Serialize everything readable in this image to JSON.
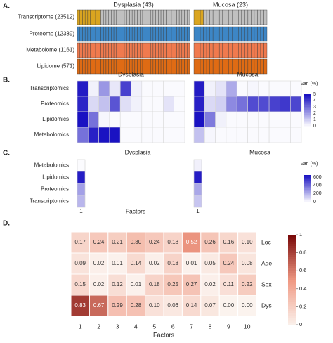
{
  "panel_labels": [
    "A.",
    "B.",
    "C.",
    "D."
  ],
  "chart_data": [
    {
      "panel": "A.",
      "type": "heatmap",
      "groups": [
        {
          "name": "Dysplasia (43)",
          "n": 43
        },
        {
          "name": "Mucosa (23)",
          "n": 23
        }
      ],
      "rows": [
        {
          "name": "Transcriptome (23512)",
          "color": "#c0c0c0",
          "missing_color": "#daa520"
        },
        {
          "name": "Proteome (12389)",
          "color": "#3d86c6"
        },
        {
          "name": "Metabolome (1161)",
          "color": "#f07a4e"
        },
        {
          "name": "Lipidome (571)",
          "color": "#df6b14"
        }
      ],
      "transcriptome_missing_samples": {
        "Dysplasia (43)": 9,
        "Mucosa (23)": 3
      }
    },
    {
      "panel": "B.",
      "type": "heatmap",
      "panels": [
        "Dysplasia",
        "Mucosa"
      ],
      "rows": [
        "Transcriptomics",
        "Proteomics",
        "Lipidomics",
        "Metabolomics"
      ],
      "factors": [
        1,
        2,
        3,
        4,
        5,
        6,
        7,
        8,
        9,
        10
      ],
      "values": {
        "Dysplasia": [
          [
            4.8,
            0.3,
            2.2,
            0.5,
            4.0,
            0.3,
            0.1,
            0.1,
            0.1,
            0.1
          ],
          [
            4.6,
            0.8,
            1.3,
            3.6,
            0.7,
            0.3,
            0.1,
            0.1,
            0.6,
            0.1
          ],
          [
            5.0,
            3.0,
            0.2,
            0.1,
            0.1,
            0.1,
            0.1,
            0.1,
            0.1,
            0.1
          ],
          [
            3.0,
            4.7,
            5.0,
            5.0,
            0.1,
            0.1,
            0.1,
            0.1,
            0.1,
            0.1
          ]
        ],
        "Mucosa": [
          [
            4.8,
            0.3,
            0.6,
            1.8,
            0.1,
            0.2,
            0.1,
            0.1,
            0.1,
            0.1
          ],
          [
            4.7,
            0.8,
            1.0,
            2.5,
            3.0,
            3.8,
            3.8,
            4.0,
            4.2,
            3.9
          ],
          [
            5.0,
            2.8,
            0.3,
            0.1,
            0.1,
            0.1,
            0.1,
            0.1,
            0.1,
            0.1
          ],
          [
            1.3,
            0.2,
            0.1,
            0.1,
            0.1,
            0.1,
            0.1,
            0.1,
            0.1,
            0.1
          ]
        ]
      },
      "legend": {
        "title": "Var. (%)",
        "ticks": [
          0,
          1,
          2,
          3,
          4,
          5
        ],
        "min": 0,
        "max": 5
      },
      "colors": {
        "low": "#ffffff",
        "high": "#1a12c2"
      }
    },
    {
      "panel": "C.",
      "type": "heatmap",
      "panels": [
        "Dysplasia",
        "Mucosa"
      ],
      "rows": [
        "Metabolomics",
        "Lipidomics",
        "Proteomics",
        "Transcriptomics"
      ],
      "values": {
        "Dysplasia": [
          10,
          620,
          260,
          200
        ],
        "Mucosa": [
          40,
          620,
          240,
          160
        ]
      },
      "xtick": "1",
      "xlabel": "Factors",
      "legend": {
        "title": "Var. (%)",
        "ticks": [
          0,
          200,
          400,
          600
        ],
        "min": 0,
        "max": 650
      },
      "colors": {
        "low": "#ffffff",
        "high": "#1a12c2"
      }
    },
    {
      "panel": "D.",
      "type": "heatmap",
      "rows": [
        "Loc",
        "Age",
        "Sex",
        "Dys"
      ],
      "x": [
        "1",
        "2",
        "3",
        "4",
        "5",
        "6",
        "7",
        "8",
        "9",
        "10"
      ],
      "xlabel": "Factors",
      "values": [
        [
          0.17,
          0.24,
          0.21,
          0.3,
          0.24,
          0.18,
          0.52,
          0.26,
          0.16,
          0.1
        ],
        [
          0.09,
          0.02,
          0.01,
          0.14,
          0.02,
          0.18,
          0.01,
          0.05,
          0.24,
          0.08
        ],
        [
          0.15,
          0.02,
          0.12,
          0.01,
          0.18,
          0.25,
          0.27,
          0.02,
          0.11,
          0.22
        ],
        [
          0.83,
          0.67,
          0.29,
          0.28,
          0.1,
          0.06,
          0.14,
          0.07,
          0.0,
          0.0
        ]
      ],
      "cell_labels": [
        [
          "0.17",
          "0.24",
          "0.21",
          "0.30",
          "0.24",
          "0.18",
          "0.52",
          "0.26",
          "0.16",
          "0.10"
        ],
        [
          "0.09",
          "0.02",
          "0.01",
          "0.14",
          "0.02",
          "0.18",
          "0.01",
          "0.05",
          "0.24",
          "0.08"
        ],
        [
          "0.15",
          "0.02",
          "0.12",
          "0.01",
          "0.18",
          "0.25",
          "0.27",
          "0.02",
          "0.11",
          "0.22"
        ],
        [
          "0.83",
          "0.67",
          "0.29",
          "0.28",
          "0.10",
          "0.06",
          "0.14",
          "0.07",
          "0.00",
          "0.00"
        ]
      ],
      "legend": {
        "ticks": [
          "0",
          "0.2",
          "0.4",
          "0.6",
          "0.8",
          "1"
        ],
        "min": 0,
        "max": 1
      },
      "colors": {
        "low": "#fbf3ee",
        "mid": "#f09a84",
        "high": "#7a0a0a"
      }
    }
  ]
}
